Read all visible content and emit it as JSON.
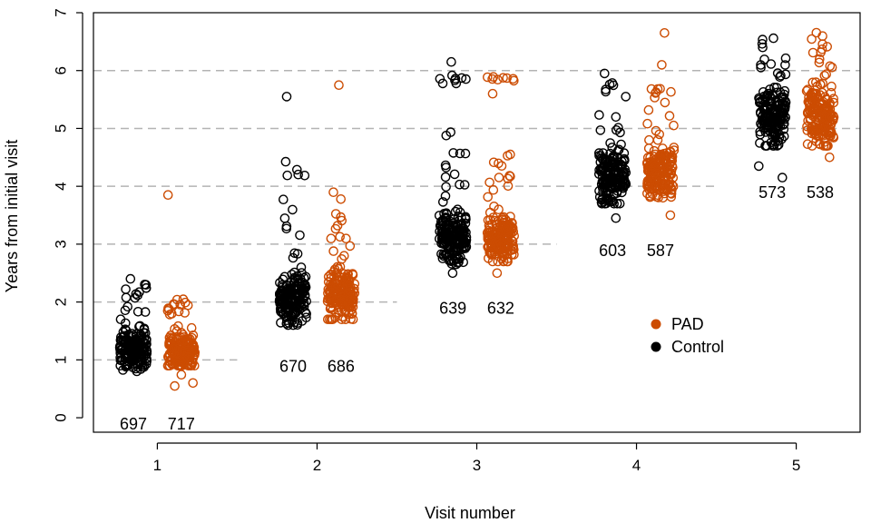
{
  "chart_data": {
    "type": "scatter",
    "title": "",
    "xlabel": "Visit number",
    "ylabel": "Years from initial visit",
    "xlim": [
      0.6,
      5.4
    ],
    "ylim": [
      -0.25,
      7
    ],
    "x_ticks": [
      "1",
      "2",
      "3",
      "4",
      "5"
    ],
    "y_ticks": [
      "0",
      "1",
      "2",
      "3",
      "4",
      "5",
      "6",
      "7"
    ],
    "colors": {
      "Control": "#000000",
      "PAD": "#CC4C02",
      "grid": "#b3b3b3"
    },
    "grid": "dashed horizontal reference lines at y = 1..6",
    "legend": {
      "placement": "right, middle",
      "items": [
        {
          "label": "PAD",
          "color": "#CC4C02"
        },
        {
          "label": "Control",
          "color": "#000000"
        }
      ]
    },
    "groups": [
      {
        "visit": 1,
        "series": "Control",
        "x_offset": -0.15,
        "n_label": "697",
        "median": 1.15,
        "core": [
          0.8,
          1.7
        ],
        "tail_hi": [
          1.75,
          2.4
        ],
        "extremes": [
          2.4
        ]
      },
      {
        "visit": 1,
        "series": "PAD",
        "x_offset": 0.15,
        "n_label": "717",
        "median": 1.15,
        "core": [
          0.9,
          1.7
        ],
        "tail_hi": [
          1.75,
          2.1
        ],
        "tail_lo": [
          0.5,
          0.85
        ],
        "extremes": [
          3.85
        ]
      },
      {
        "visit": 2,
        "series": "Control",
        "x_offset": -0.15,
        "n_label": "670",
        "median": 2.05,
        "core": [
          1.6,
          2.6
        ],
        "tail_hi": [
          2.6,
          4.5
        ],
        "extremes": [
          5.55
        ]
      },
      {
        "visit": 2,
        "series": "PAD",
        "x_offset": 0.15,
        "n_label": "686",
        "median": 2.15,
        "core": [
          1.7,
          2.7
        ],
        "tail_hi": [
          2.7,
          3.9
        ],
        "extremes": [
          5.75
        ]
      },
      {
        "visit": 3,
        "series": "Control",
        "x_offset": -0.15,
        "n_label": "639",
        "median": 3.1,
        "core": [
          2.65,
          3.6
        ],
        "tail_hi": [
          3.6,
          5.1
        ],
        "top_cluster": [
          5.75,
          5.95
        ],
        "extremes": [
          2.5,
          6.15
        ]
      },
      {
        "visit": 3,
        "series": "PAD",
        "x_offset": 0.15,
        "n_label": "632",
        "median": 3.1,
        "core": [
          2.7,
          3.6
        ],
        "tail_hi": [
          3.6,
          4.6
        ],
        "top_cluster": [
          5.8,
          5.9
        ],
        "extremes": [
          2.5,
          5.6
        ]
      },
      {
        "visit": 4,
        "series": "Control",
        "x_offset": -0.15,
        "n_label": "603",
        "median": 4.15,
        "core": [
          3.7,
          4.7
        ],
        "tail_hi": [
          4.7,
          5.9
        ],
        "extremes": [
          3.45,
          5.95
        ]
      },
      {
        "visit": 4,
        "series": "PAD",
        "x_offset": 0.15,
        "n_label": "587",
        "median": 4.25,
        "core": [
          3.8,
          4.8
        ],
        "tail_hi": [
          4.8,
          5.75
        ],
        "extremes": [
          3.5,
          6.1,
          6.65
        ]
      },
      {
        "visit": 5,
        "series": "Control",
        "x_offset": -0.15,
        "n_label": "573",
        "median": 5.2,
        "core": [
          4.7,
          5.8
        ],
        "tail_hi": [
          5.8,
          6.6
        ],
        "extremes": [
          4.15,
          4.35
        ]
      },
      {
        "visit": 5,
        "series": "PAD",
        "x_offset": 0.15,
        "n_label": "538",
        "median": 5.2,
        "core": [
          4.7,
          5.9
        ],
        "tail_hi": [
          5.9,
          6.75
        ],
        "extremes": [
          4.5
        ]
      }
    ],
    "reference_lines": [
      {
        "y": 1,
        "x_from": 0.6,
        "x_to": 1.5
      },
      {
        "y": 2,
        "x_from": 0.6,
        "x_to": 2.5
      },
      {
        "y": 3,
        "x_from": 0.6,
        "x_to": 3.5
      },
      {
        "y": 4,
        "x_from": 0.6,
        "x_to": 4.5
      },
      {
        "y": 5,
        "x_from": 0.6,
        "x_to": 5.4
      },
      {
        "y": 6,
        "x_from": 0.6,
        "x_to": 5.4
      }
    ]
  }
}
